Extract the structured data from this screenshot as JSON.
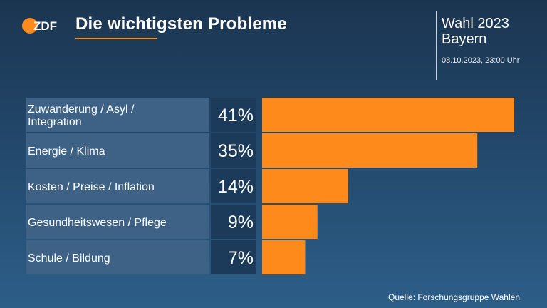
{
  "header": {
    "logo": "ZDF",
    "title": "Die wichtigsten Probleme",
    "election_line1": "Wahl 2023",
    "election_line2": "Bayern",
    "timestamp": "08.10.2023, 23:00 Uhr"
  },
  "footer": {
    "source": "Quelle: Forschungsgruppe Wahlen"
  },
  "colors": {
    "accent": "#ff8a1c",
    "label_bg": "#3d6286",
    "value_bg": "#1c3a59"
  },
  "chart_data": {
    "type": "bar",
    "orientation": "horizontal",
    "categories": [
      [
        "Zuwanderung / Asyl /",
        "Integration"
      ],
      [
        "Energie / Klima"
      ],
      [
        "Kosten / Preise / Inflation"
      ],
      [
        "Gesundheitswesen / Pflege"
      ],
      [
        "Schule / Bildung"
      ]
    ],
    "values": [
      41,
      35,
      14,
      9,
      7
    ],
    "value_labels": [
      "41%",
      "35%",
      "14%",
      "9%",
      "7%"
    ],
    "unit": "%",
    "xlim": [
      0,
      41
    ]
  }
}
